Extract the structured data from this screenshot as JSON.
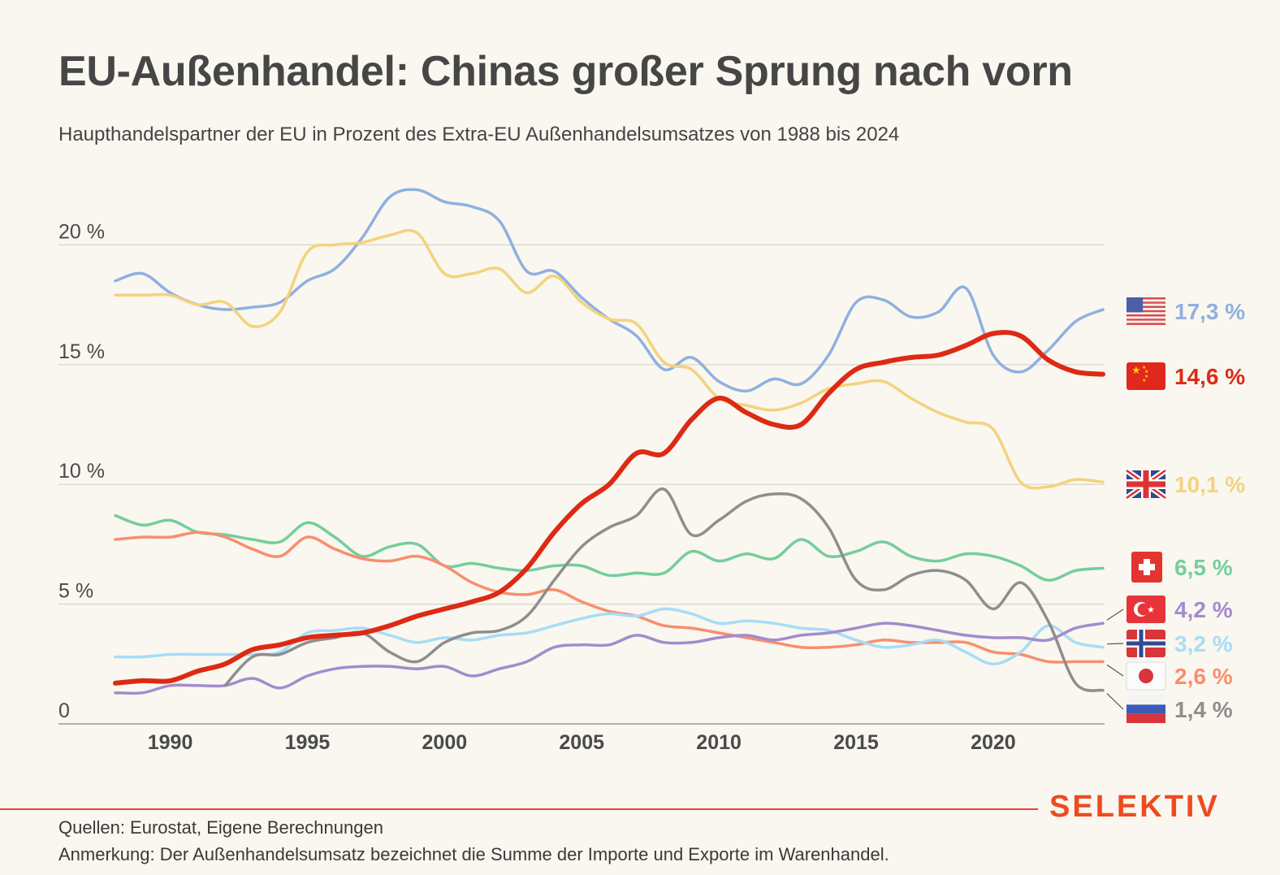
{
  "header": {
    "title": "EU-Außenhandel: Chinas großer Sprung nach vorn",
    "subtitle": "Haupthandelspartner der EU in Prozent des Extra-EU Außenhandelsumsatzes von 1988 bis 2024"
  },
  "footer": {
    "brand": "SELEKTIV",
    "source": "Quellen: Eurostat, Eigene Berechnungen",
    "note": "Anmerkung: Der Außenhandelsumsatz bezeichnet die Summe der Importe und Exporte im Warenhandel."
  },
  "chart_data": {
    "type": "line",
    "x": [
      1988,
      1989,
      1990,
      1991,
      1992,
      1993,
      1994,
      1995,
      1996,
      1997,
      1998,
      1999,
      2000,
      2001,
      2002,
      2003,
      2004,
      2005,
      2006,
      2007,
      2008,
      2009,
      2010,
      2011,
      2012,
      2013,
      2014,
      2015,
      2016,
      2017,
      2018,
      2019,
      2020,
      2021,
      2022,
      2023,
      2024
    ],
    "xticks": [
      1990,
      1995,
      2000,
      2005,
      2010,
      2015,
      2020
    ],
    "xtick_labels": [
      "1990",
      "1995",
      "2000",
      "2005",
      "2010",
      "2015",
      "2020"
    ],
    "yticks": [
      0,
      5,
      10,
      15,
      20
    ],
    "ytick_labels": [
      "0",
      "5 %",
      "10 %",
      "15 %",
      "20 %"
    ],
    "ylim": [
      0,
      23
    ],
    "xlim": [
      1988,
      2024
    ],
    "grid": true,
    "series": [
      {
        "name": "USA",
        "flag": "us-flag",
        "color": "#8fb0e0",
        "width": 3.5,
        "label": "17,3 %",
        "values": [
          18.5,
          18.8,
          18.0,
          17.5,
          17.3,
          17.4,
          17.6,
          18.5,
          19.0,
          20.3,
          22.0,
          22.3,
          21.8,
          21.6,
          21.0,
          18.9,
          18.9,
          17.8,
          16.9,
          16.2,
          14.8,
          15.3,
          14.3,
          13.9,
          14.4,
          14.2,
          15.4,
          17.6,
          17.7,
          17.0,
          17.2,
          18.2,
          15.4,
          14.7,
          15.6,
          16.8,
          17.3
        ]
      },
      {
        "name": "China",
        "flag": "china-flag",
        "color": "#dd2a14",
        "width": 6,
        "label": "14,6 %",
        "values": [
          1.7,
          1.8,
          1.8,
          2.2,
          2.5,
          3.1,
          3.3,
          3.6,
          3.7,
          3.8,
          4.1,
          4.5,
          4.8,
          5.1,
          5.5,
          6.5,
          8.0,
          9.2,
          10.0,
          11.3,
          11.3,
          12.7,
          13.6,
          13.0,
          12.5,
          12.5,
          13.8,
          14.8,
          15.1,
          15.3,
          15.4,
          15.8,
          16.3,
          16.2,
          15.2,
          14.7,
          14.6
        ]
      },
      {
        "name": "Vereinigtes Königreich",
        "flag": "uk-flag",
        "color": "#f4d27e",
        "width": 3.5,
        "label": "10,1 %",
        "values": [
          17.9,
          17.9,
          17.9,
          17.5,
          17.6,
          16.6,
          17.2,
          19.7,
          20.0,
          20.1,
          20.4,
          20.5,
          18.8,
          18.8,
          19.0,
          18.0,
          18.7,
          17.6,
          16.9,
          16.7,
          15.1,
          14.8,
          13.6,
          13.3,
          13.1,
          13.4,
          14.0,
          14.2,
          14.3,
          13.6,
          13.0,
          12.6,
          12.3,
          10.1,
          9.9,
          10.2,
          10.1
        ]
      },
      {
        "name": "Schweiz",
        "flag": "switzerland-flag",
        "color": "#75cd9c",
        "width": 3.5,
        "label": "6,5 %",
        "values": [
          8.7,
          8.3,
          8.5,
          8.0,
          7.9,
          7.7,
          7.6,
          8.4,
          7.8,
          7.0,
          7.4,
          7.5,
          6.6,
          6.7,
          6.5,
          6.4,
          6.6,
          6.6,
          6.2,
          6.3,
          6.3,
          7.2,
          6.8,
          7.1,
          6.9,
          7.7,
          7.0,
          7.2,
          7.6,
          7.0,
          6.8,
          7.1,
          7.0,
          6.6,
          6.0,
          6.4,
          6.5
        ]
      },
      {
        "name": "Russland",
        "flag": "russia-flag",
        "color": "#8e8e8e",
        "width": 3.5,
        "label": "1,4 %",
        "values": [
          null,
          null,
          null,
          null,
          1.6,
          2.8,
          2.9,
          3.4,
          3.6,
          3.8,
          3.0,
          2.6,
          3.4,
          3.8,
          3.9,
          4.5,
          6.0,
          7.4,
          8.2,
          8.7,
          9.8,
          7.9,
          8.5,
          9.3,
          9.6,
          9.4,
          8.2,
          6.0,
          5.6,
          6.2,
          6.4,
          6.0,
          4.8,
          5.9,
          4.3,
          1.7,
          1.4
        ]
      },
      {
        "name": "Japan",
        "flag": "japan-flag",
        "color": "#f88e6e",
        "width": 3.5,
        "label": "2,6 %",
        "values": [
          7.7,
          7.8,
          7.8,
          8.0,
          7.8,
          7.3,
          7.0,
          7.8,
          7.3,
          6.9,
          6.8,
          7.0,
          6.6,
          5.9,
          5.5,
          5.4,
          5.6,
          5.1,
          4.7,
          4.5,
          4.1,
          4.0,
          3.8,
          3.6,
          3.4,
          3.2,
          3.2,
          3.3,
          3.5,
          3.4,
          3.4,
          3.4,
          3.0,
          2.9,
          2.6,
          2.6,
          2.6
        ]
      },
      {
        "name": "Norwegen",
        "flag": "norway-flag",
        "color": "#a8dcf7",
        "width": 3.5,
        "label": "3,2 %",
        "values": [
          2.8,
          2.8,
          2.9,
          2.9,
          2.9,
          2.9,
          3.0,
          3.8,
          3.9,
          4.0,
          3.7,
          3.4,
          3.6,
          3.5,
          3.7,
          3.8,
          4.1,
          4.4,
          4.6,
          4.5,
          4.8,
          4.6,
          4.2,
          4.3,
          4.2,
          4.0,
          3.9,
          3.5,
          3.2,
          3.3,
          3.5,
          3.0,
          2.5,
          3.0,
          4.1,
          3.4,
          3.2
        ]
      },
      {
        "name": "Türkei",
        "flag": "turkey-flag",
        "color": "#a38bce",
        "width": 3.5,
        "label": "4,2 %",
        "values": [
          1.3,
          1.3,
          1.6,
          1.6,
          1.6,
          1.9,
          1.5,
          2.0,
          2.3,
          2.4,
          2.4,
          2.3,
          2.4,
          2.0,
          2.3,
          2.6,
          3.2,
          3.3,
          3.3,
          3.7,
          3.4,
          3.4,
          3.6,
          3.7,
          3.5,
          3.7,
          3.8,
          4.0,
          4.2,
          4.1,
          3.9,
          3.7,
          3.6,
          3.6,
          3.5,
          4.0,
          4.2
        ]
      }
    ]
  }
}
